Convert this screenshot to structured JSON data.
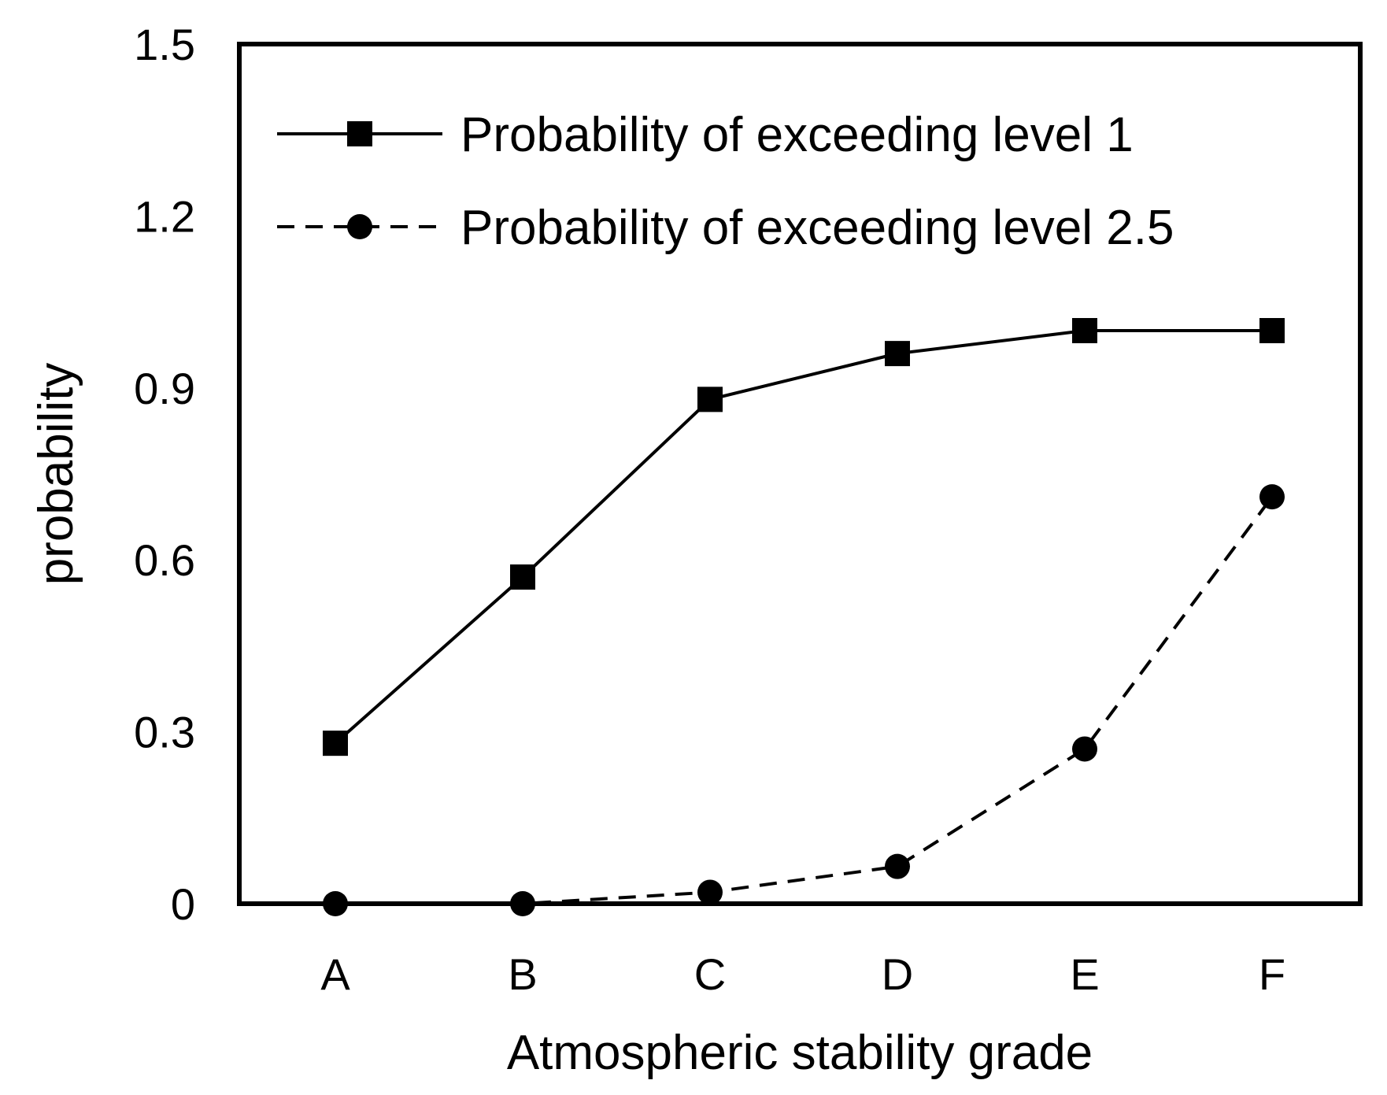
{
  "chart_data": {
    "type": "line",
    "title": "",
    "xlabel": "Atmospheric stability grade",
    "ylabel": "probability",
    "categories": [
      "A",
      "B",
      "C",
      "D",
      "E",
      "F"
    ],
    "ylim": [
      0,
      1.5
    ],
    "yticks": [
      0,
      0.3,
      0.6,
      0.9,
      1.2,
      1.5
    ],
    "ytick_labels": [
      "0",
      "0.3",
      "0.6",
      "0.9",
      "1.2",
      "1.5"
    ],
    "grid": false,
    "legend_position": "top-left",
    "series": [
      {
        "name": "Probability of exceeding level 1",
        "values": [
          0.28,
          0.57,
          0.88,
          0.96,
          1.0,
          1.0
        ],
        "line_style": "solid",
        "marker": "square",
        "color": "#000000"
      },
      {
        "name": "Probability of exceeding level 2.5",
        "values": [
          0.0,
          0.0,
          0.02,
          0.065,
          0.27,
          0.71
        ],
        "line_style": "dashed",
        "marker": "circle",
        "color": "#000000"
      }
    ]
  }
}
